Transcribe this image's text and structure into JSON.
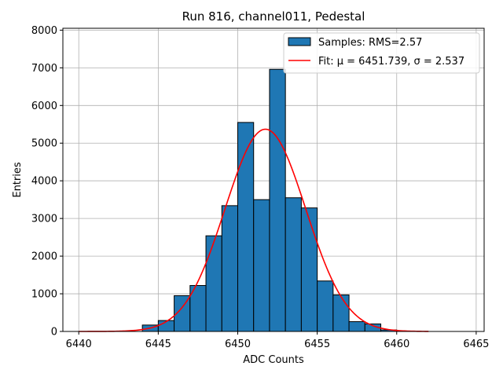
{
  "chart_data": {
    "type": "bar",
    "title": "Run 816, channel011, Pedestal",
    "xlabel": "ADC Counts",
    "ylabel": "Entries",
    "xlim": [
      6439,
      6465.5
    ],
    "ylim": [
      0,
      8050
    ],
    "x_ticks": [
      6440,
      6445,
      6450,
      6455,
      6460,
      6465
    ],
    "y_ticks": [
      0,
      1000,
      2000,
      3000,
      4000,
      5000,
      6000,
      7000,
      8000
    ],
    "grid": true,
    "legend_position": "top-right",
    "bin_width": 1,
    "bins": [
      {
        "x": 6444,
        "count": 170
      },
      {
        "x": 6445,
        "count": 290
      },
      {
        "x": 6446,
        "count": 950
      },
      {
        "x": 6447,
        "count": 1220
      },
      {
        "x": 6448,
        "count": 2540
      },
      {
        "x": 6449,
        "count": 3340
      },
      {
        "x": 6450,
        "count": 5550
      },
      {
        "x": 6451,
        "count": 3500
      },
      {
        "x": 6452,
        "count": 6960
      },
      {
        "x": 6453,
        "count": 3550
      },
      {
        "x": 6454,
        "count": 3280
      },
      {
        "x": 6455,
        "count": 1340
      },
      {
        "x": 6456,
        "count": 970
      },
      {
        "x": 6457,
        "count": 260
      },
      {
        "x": 6458,
        "count": 200
      },
      {
        "x": 6459,
        "count": 40
      }
    ],
    "fit": {
      "mu": 6451.739,
      "sigma": 2.537,
      "amplitude": 5370,
      "x_range": [
        6440,
        6462
      ]
    },
    "series": [
      {
        "name": "Samples: RMS=2.57",
        "kind": "histogram",
        "color": "#1f77b4"
      },
      {
        "name": "Fit: μ = 6451.739, σ = 2.537",
        "kind": "line",
        "color": "#ff0000"
      }
    ]
  }
}
